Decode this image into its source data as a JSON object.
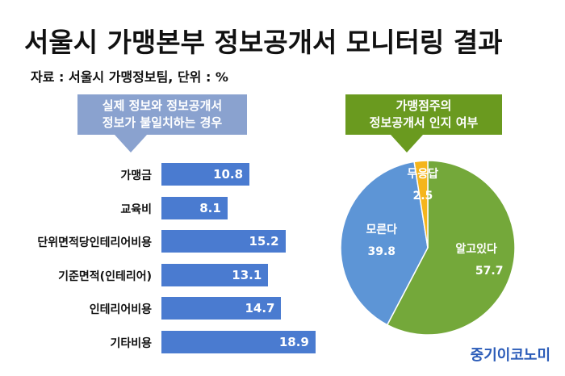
{
  "header": {
    "title": "서울시 가맹본부 정보공개서 모니터링 결과",
    "source": "자료 : 서울시 가맹정보팀, 단위 : %"
  },
  "brand": "중기이코노미",
  "colors": {
    "bar": "#4a7bd0",
    "left_callout": "#8aa2cf",
    "right_callout": "#6a9a1f",
    "pie_known": "#74a83a",
    "pie_unknown": "#5d95d6",
    "pie_no_answer": "#f5b51c"
  },
  "chart_data": [
    {
      "type": "bar",
      "orientation": "horizontal",
      "title_lines": [
        "실제 정보와 정보공개서",
        "정보가 불일치하는 경우"
      ],
      "categories": [
        "가맹금",
        "교육비",
        "단위면적당인테리어비용",
        "기준면적(인테리어)",
        "인테리어비용",
        "기타비용"
      ],
      "values": [
        10.8,
        8.1,
        15.2,
        13.1,
        14.7,
        18.9
      ],
      "value_labels": [
        "10.8",
        "8.1",
        "15.2",
        "13.1",
        "14.7",
        "18.9"
      ],
      "xlim": [
        0,
        20
      ],
      "grid": false,
      "legend": "none"
    },
    {
      "type": "pie",
      "title_lines": [
        "가맹점주의",
        "정보공개서 인지 여부"
      ],
      "slices": [
        {
          "label": "알고있다",
          "value": 57.7,
          "value_label": "57.7"
        },
        {
          "label": "모른다",
          "value": 39.8,
          "value_label": "39.8"
        },
        {
          "label": "무응답",
          "value": 2.5,
          "value_label": "2.5"
        }
      ],
      "legend": "none"
    }
  ]
}
